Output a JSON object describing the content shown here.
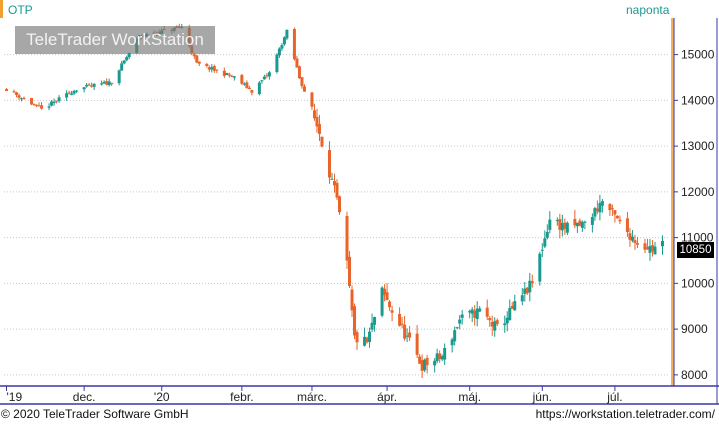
{
  "header": {
    "symbol": "OTP",
    "frequency": "naponta"
  },
  "watermark": "TeleTrader WorkStation",
  "footer": {
    "copyright": "© 2020 TeleTrader Software GmbH",
    "url": "https://workstation.teletrader.com/"
  },
  "last_price_label": "10850",
  "colors": {
    "up": "#1a9a8e",
    "down": "#e8642a",
    "grid": "#c8c8c8",
    "axis_accent": "#3a3aa8",
    "side_bar": "#f0a030"
  },
  "chart_data": {
    "type": "candlestick",
    "title": "OTP",
    "y_axis": {
      "side": "right",
      "min": 7800,
      "max": 15800,
      "ticks": [
        8000,
        9000,
        10000,
        11000,
        12000,
        13000,
        14000,
        15000
      ]
    },
    "x_axis": {
      "labels": [
        "'19",
        "dec.",
        "'20",
        "febr.",
        "márc.",
        "ápr.",
        "máj.",
        "jún.",
        "júl."
      ],
      "start": "2019-10-31",
      "end": "2020-07-23"
    },
    "grid": "horizontal dotted",
    "last_value": 10850,
    "close_series": [
      [
        "2019-11-01",
        14250
      ],
      [
        "2019-11-15",
        13800
      ],
      [
        "2019-11-29",
        14250
      ],
      [
        "2019-12-13",
        14400
      ],
      [
        "2019-12-24",
        15400
      ],
      [
        "2020-01-10",
        15600
      ],
      [
        "2020-01-16",
        14800
      ],
      [
        "2020-01-31",
        14500
      ],
      [
        "2020-02-07",
        14200
      ],
      [
        "2020-02-14",
        14600
      ],
      [
        "2020-02-21",
        15500
      ],
      [
        "2020-02-26",
        14500
      ],
      [
        "2020-03-05",
        13300
      ],
      [
        "2020-03-12",
        11800
      ],
      [
        "2020-03-16",
        10400
      ],
      [
        "2020-03-19",
        8800
      ],
      [
        "2020-03-24",
        8700
      ],
      [
        "2020-03-30",
        9800
      ],
      [
        "2020-04-06",
        9100
      ],
      [
        "2020-04-15",
        8200
      ],
      [
        "2020-04-23",
        8400
      ],
      [
        "2020-04-30",
        9200
      ],
      [
        "2020-05-08",
        9400
      ],
      [
        "2020-05-15",
        9000
      ],
      [
        "2020-05-22",
        9500
      ],
      [
        "2020-05-29",
        10000
      ],
      [
        "2020-06-05",
        11400
      ],
      [
        "2020-06-12",
        11200
      ],
      [
        "2020-06-19",
        11300
      ],
      [
        "2020-06-26",
        11800
      ],
      [
        "2020-07-03",
        11300
      ],
      [
        "2020-07-10",
        10900
      ],
      [
        "2020-07-16",
        10750
      ],
      [
        "2020-07-20",
        10850
      ]
    ]
  }
}
